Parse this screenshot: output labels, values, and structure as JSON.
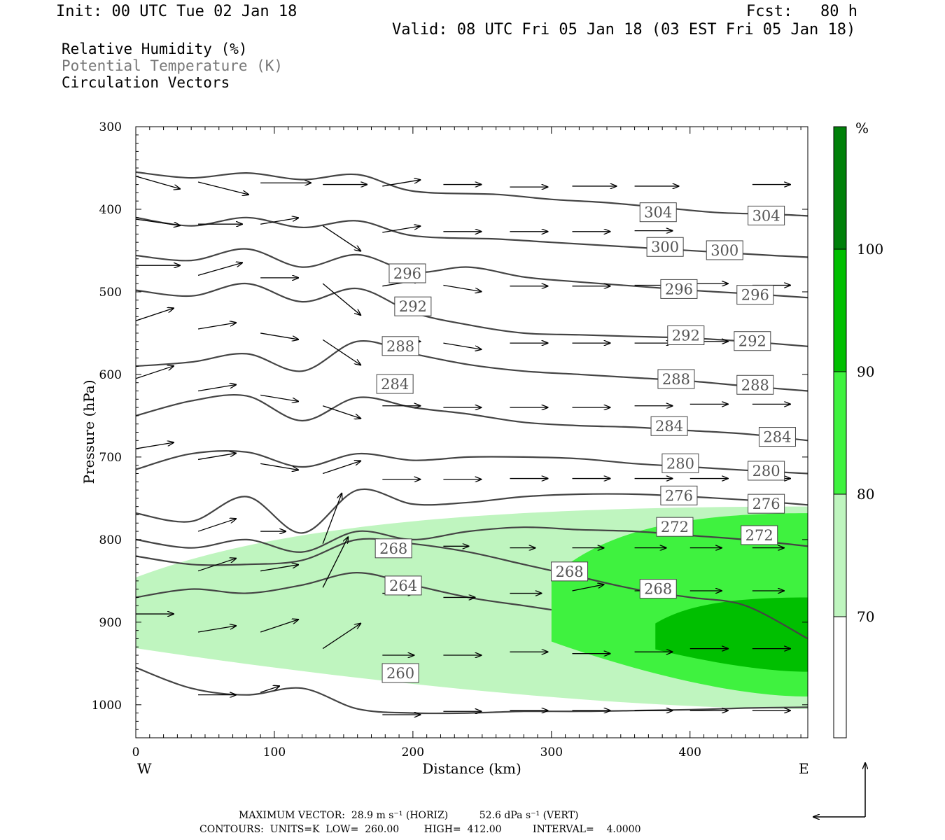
{
  "header": {
    "init": "Init: 00 UTC Tue 02 Jan 18",
    "fcst": "Fcst:   80 h",
    "valid": "Valid: 08 UTC Fri 05 Jan 18 (03 EST Fri 05 Jan 18)"
  },
  "legend": {
    "rh": "Relative Humidity (%)",
    "theta": "Potential Temperature (K)",
    "vectors": "Circulation Vectors"
  },
  "footer": {
    "max_vector": "MAXIMUM VECTOR:  28.9 m s⁻¹ (HORIZ)          52.6 dPa s⁻¹ (VERT)",
    "contours": "CONTOURS:  UNITS=K  LOW=  260.00        HIGH=  412.00          INTERVAL=    4.0000"
  },
  "colors": {
    "rh_70_80": "#bff5bf",
    "rh_80_90": "#3ff23f",
    "rh_90_100": "#00bf00",
    "rh_100": "#00800a",
    "theta_line": "#444444"
  },
  "chart_data": {
    "type": "cross-section",
    "xlabel": "Distance (km)",
    "ylabel": "Pressure (hPa)",
    "xlim": [
      0,
      485
    ],
    "ylim": [
      1040,
      300
    ],
    "x_ticks": [
      "0",
      "100",
      "200",
      "300",
      "400"
    ],
    "y_ticks": [
      "300",
      "400",
      "500",
      "600",
      "700",
      "800",
      "900",
      "1000"
    ],
    "x_end_labels": {
      "west": "W",
      "east": "E"
    },
    "colorbar": {
      "unit": "%",
      "levels": [
        "70",
        "80",
        "90",
        "100"
      ]
    },
    "theta_contours": [
      {
        "level": 304,
        "labels": [
          {
            "label": "304",
            "x": 377,
            "p": 404
          },
          {
            "label": "304",
            "x": 455,
            "p": 408
          }
        ],
        "x": [
          0,
          40,
          80,
          120,
          160,
          200,
          260,
          300,
          340,
          380,
          420,
          460,
          485
        ],
        "p": [
          355,
          362,
          356,
          364,
          358,
          378,
          382,
          388,
          392,
          398,
          404,
          406,
          408
        ]
      },
      {
        "level": 300,
        "labels": [
          {
            "label": "300",
            "x": 382,
            "p": 446
          },
          {
            "label": "300",
            "x": 425,
            "p": 450
          }
        ],
        "x": [
          0,
          40,
          80,
          120,
          160,
          200,
          260,
          300,
          340,
          380,
          420,
          460,
          485
        ],
        "p": [
          410,
          420,
          410,
          422,
          414,
          432,
          436,
          440,
          444,
          448,
          452,
          456,
          458
        ]
      },
      {
        "level": 296,
        "labels": [
          {
            "label": "296",
            "x": 196,
            "p": 478
          },
          {
            "label": "296",
            "x": 392,
            "p": 497
          },
          {
            "label": "296",
            "x": 447,
            "p": 504
          }
        ],
        "x": [
          0,
          40,
          80,
          120,
          160,
          200,
          240,
          280,
          320,
          360,
          400,
          440,
          485
        ],
        "p": [
          456,
          462,
          448,
          470,
          455,
          476,
          470,
          482,
          488,
          493,
          498,
          502,
          507
        ]
      },
      {
        "level": 292,
        "labels": [
          {
            "label": "292",
            "x": 200,
            "p": 518
          },
          {
            "label": "292",
            "x": 397,
            "p": 553
          },
          {
            "label": "292",
            "x": 445,
            "p": 560
          }
        ],
        "x": [
          0,
          40,
          80,
          120,
          160,
          200,
          240,
          280,
          320,
          360,
          400,
          440,
          485
        ],
        "p": [
          498,
          505,
          490,
          512,
          496,
          525,
          540,
          550,
          552,
          554,
          556,
          560,
          566
        ]
      },
      {
        "level": 288,
        "labels": [
          {
            "label": "288",
            "x": 191,
            "p": 566
          },
          {
            "label": "288",
            "x": 390,
            "p": 606
          },
          {
            "label": "288",
            "x": 447,
            "p": 613
          }
        ],
        "x": [
          0,
          40,
          80,
          120,
          160,
          200,
          240,
          280,
          320,
          360,
          400,
          440,
          485
        ],
        "p": [
          590,
          585,
          575,
          596,
          560,
          575,
          588,
          596,
          600,
          604,
          608,
          614,
          620
        ]
      },
      {
        "level": 284,
        "labels": [
          {
            "label": "284",
            "x": 187,
            "p": 612
          },
          {
            "label": "284",
            "x": 385,
            "p": 663
          },
          {
            "label": "284",
            "x": 463,
            "p": 676
          }
        ],
        "x": [
          0,
          40,
          80,
          120,
          160,
          200,
          240,
          280,
          320,
          360,
          400,
          440,
          485
        ],
        "p": [
          650,
          632,
          626,
          656,
          628,
          640,
          648,
          658,
          662,
          664,
          668,
          672,
          680
        ]
      },
      {
        "level": 280,
        "labels": [
          {
            "label": "280",
            "x": 393,
            "p": 708
          },
          {
            "label": "280",
            "x": 455,
            "p": 717
          }
        ],
        "x": [
          0,
          40,
          80,
          120,
          160,
          200,
          240,
          280,
          320,
          360,
          400,
          440,
          485
        ],
        "p": [
          715,
          696,
          694,
          712,
          696,
          704,
          700,
          700,
          702,
          708,
          712,
          716,
          720
        ]
      },
      {
        "level": 276,
        "labels": [
          {
            "label": "276",
            "x": 392,
            "p": 747
          },
          {
            "label": "276",
            "x": 455,
            "p": 757
          }
        ],
        "x": [
          0,
          40,
          80,
          120,
          160,
          200,
          240,
          280,
          320,
          360,
          400,
          440,
          485
        ],
        "p": [
          768,
          778,
          748,
          792,
          740,
          757,
          755,
          748,
          745,
          745,
          748,
          752,
          758
        ]
      },
      {
        "level": 272,
        "labels": [
          {
            "label": "272",
            "x": 389,
            "p": 785
          },
          {
            "label": "272",
            "x": 450,
            "p": 795
          }
        ],
        "x": [
          0,
          40,
          80,
          120,
          160,
          200,
          240,
          280,
          320,
          360,
          400,
          440,
          485
        ],
        "p": [
          800,
          810,
          800,
          815,
          790,
          800,
          790,
          785,
          788,
          790,
          795,
          800,
          808
        ]
      },
      {
        "level": 268,
        "labels": [
          {
            "label": "268",
            "x": 186,
            "p": 811
          },
          {
            "label": "268",
            "x": 313,
            "p": 839
          },
          {
            "label": "268",
            "x": 377,
            "p": 860
          }
        ],
        "x": [
          0,
          40,
          80,
          120,
          160,
          200,
          240,
          280,
          320,
          360,
          400,
          440,
          485
        ],
        "p": [
          820,
          830,
          830,
          825,
          800,
          805,
          815,
          830,
          845,
          860,
          870,
          880,
          920
        ]
      },
      {
        "level": 264,
        "labels": [
          {
            "label": "264",
            "x": 193,
            "p": 856
          }
        ],
        "x": [
          0,
          40,
          80,
          120,
          160,
          200,
          240,
          280,
          300
        ],
        "p": [
          870,
          860,
          865,
          855,
          840,
          855,
          870,
          880,
          885
        ]
      },
      {
        "level": 260,
        "labels": [
          {
            "label": "260",
            "x": 191,
            "p": 962
          }
        ],
        "x": [
          0,
          40,
          80,
          120,
          160,
          200,
          240,
          280,
          320,
          360,
          400,
          440,
          485
        ],
        "p": [
          955,
          980,
          988,
          980,
          1005,
          1010,
          1010,
          1008,
          1008,
          1007,
          1006,
          1004,
          1003
        ]
      }
    ],
    "rh_regions": [
      {
        "level": "70-80",
        "p_top": 760,
        "p_bottom": 1005,
        "x_start": 0,
        "x_end": 485
      },
      {
        "level": "80-90",
        "p_top": 768,
        "p_bottom": 990,
        "x_start": 300,
        "x_end": 485
      },
      {
        "level": "90-100",
        "p_top": 870,
        "p_bottom": 960,
        "x_start": 375,
        "x_end": 485
      }
    ],
    "vectors": [
      {
        "x": 0,
        "p": 360,
        "u": 7,
        "w": -2
      },
      {
        "x": 45,
        "p": 367,
        "u": 8,
        "w": -2
      },
      {
        "x": 90,
        "p": 368,
        "u": 8,
        "w": 0
      },
      {
        "x": 135,
        "p": 370,
        "u": 7,
        "w": 0
      },
      {
        "x": 178,
        "p": 372,
        "u": 6,
        "w": 1
      },
      {
        "x": 222,
        "p": 370,
        "u": 6,
        "w": 0
      },
      {
        "x": 270,
        "p": 373,
        "u": 6,
        "w": 0
      },
      {
        "x": 315,
        "p": 372,
        "u": 7,
        "w": 0
      },
      {
        "x": 360,
        "p": 372,
        "u": 7,
        "w": 0
      },
      {
        "x": 445,
        "p": 370,
        "u": 6,
        "w": 0
      },
      {
        "x": 0,
        "p": 412,
        "u": 7,
        "w": -1
      },
      {
        "x": 45,
        "p": 418,
        "u": 7,
        "w": 0
      },
      {
        "x": 90,
        "p": 418,
        "u": 6,
        "w": 1
      },
      {
        "x": 135,
        "p": 420,
        "u": 6,
        "w": -4
      },
      {
        "x": 178,
        "p": 428,
        "u": 6,
        "w": 1
      },
      {
        "x": 222,
        "p": 427,
        "u": 6,
        "w": 0
      },
      {
        "x": 270,
        "p": 427,
        "u": 6,
        "w": 0
      },
      {
        "x": 315,
        "p": 427,
        "u": 6,
        "w": 0
      },
      {
        "x": 360,
        "p": 426,
        "u": 6,
        "w": 0
      },
      {
        "x": 0,
        "p": 468,
        "u": 7,
        "w": 0
      },
      {
        "x": 45,
        "p": 480,
        "u": 7,
        "w": 2
      },
      {
        "x": 90,
        "p": 483,
        "u": 6,
        "w": 0
      },
      {
        "x": 135,
        "p": 490,
        "u": 6,
        "w": -5
      },
      {
        "x": 178,
        "p": 493,
        "u": 6,
        "w": 1
      },
      {
        "x": 222,
        "p": 492,
        "u": 6,
        "w": -1
      },
      {
        "x": 270,
        "p": 493,
        "u": 6,
        "w": 0
      },
      {
        "x": 315,
        "p": 493,
        "u": 6,
        "w": 0
      },
      {
        "x": 360,
        "p": 492,
        "u": 6,
        "w": 0
      },
      {
        "x": 400,
        "p": 490,
        "u": 6,
        "w": 0
      },
      {
        "x": 445,
        "p": 492,
        "u": 6,
        "w": 0
      },
      {
        "x": 0,
        "p": 535,
        "u": 6,
        "w": 2
      },
      {
        "x": 45,
        "p": 545,
        "u": 6,
        "w": 1
      },
      {
        "x": 90,
        "p": 550,
        "u": 6,
        "w": -1
      },
      {
        "x": 135,
        "p": 558,
        "u": 6,
        "w": -4
      },
      {
        "x": 178,
        "p": 560,
        "u": 6,
        "w": 0
      },
      {
        "x": 222,
        "p": 562,
        "u": 6,
        "w": -1
      },
      {
        "x": 270,
        "p": 562,
        "u": 6,
        "w": 0
      },
      {
        "x": 315,
        "p": 562,
        "u": 6,
        "w": 0
      },
      {
        "x": 360,
        "p": 562,
        "u": 6,
        "w": 0
      },
      {
        "x": 400,
        "p": 560,
        "u": 6,
        "w": 0
      },
      {
        "x": 0,
        "p": 605,
        "u": 6,
        "w": 2
      },
      {
        "x": 45,
        "p": 620,
        "u": 6,
        "w": 1
      },
      {
        "x": 90,
        "p": 625,
        "u": 6,
        "w": -1
      },
      {
        "x": 135,
        "p": 638,
        "u": 6,
        "w": -2
      },
      {
        "x": 178,
        "p": 638,
        "u": 6,
        "w": 0
      },
      {
        "x": 222,
        "p": 640,
        "u": 6,
        "w": 0
      },
      {
        "x": 270,
        "p": 640,
        "u": 6,
        "w": 0
      },
      {
        "x": 315,
        "p": 640,
        "u": 6,
        "w": 0
      },
      {
        "x": 360,
        "p": 638,
        "u": 6,
        "w": 0
      },
      {
        "x": 400,
        "p": 636,
        "u": 6,
        "w": 0
      },
      {
        "x": 445,
        "p": 636,
        "u": 6,
        "w": 0
      },
      {
        "x": 0,
        "p": 690,
        "u": 6,
        "w": 1
      },
      {
        "x": 45,
        "p": 703,
        "u": 6,
        "w": 1
      },
      {
        "x": 90,
        "p": 708,
        "u": 6,
        "w": -1
      },
      {
        "x": 135,
        "p": 720,
        "u": 6,
        "w": 2
      },
      {
        "x": 178,
        "p": 727,
        "u": 6,
        "w": 0
      },
      {
        "x": 222,
        "p": 727,
        "u": 6,
        "w": 0
      },
      {
        "x": 270,
        "p": 726,
        "u": 6,
        "w": 0
      },
      {
        "x": 315,
        "p": 726,
        "u": 6,
        "w": 0
      },
      {
        "x": 360,
        "p": 726,
        "u": 6,
        "w": 0
      },
      {
        "x": 400,
        "p": 726,
        "u": 6,
        "w": 0
      },
      {
        "x": 445,
        "p": 726,
        "u": 6,
        "w": 0
      },
      {
        "x": 45,
        "p": 790,
        "u": 6,
        "w": 2
      },
      {
        "x": 90,
        "p": 790,
        "u": 4,
        "w": 0
      },
      {
        "x": 135,
        "p": 805,
        "u": 3,
        "w": 8
      },
      {
        "x": 222,
        "p": 808,
        "u": 4,
        "w": 0
      },
      {
        "x": 270,
        "p": 810,
        "u": 4,
        "w": 0
      },
      {
        "x": 315,
        "p": 810,
        "u": 5,
        "w": 0
      },
      {
        "x": 360,
        "p": 810,
        "u": 5,
        "w": 0
      },
      {
        "x": 400,
        "p": 810,
        "u": 5,
        "w": 0
      },
      {
        "x": 445,
        "p": 810,
        "u": 5,
        "w": 0
      },
      {
        "x": 45,
        "p": 838,
        "u": 6,
        "w": 2
      },
      {
        "x": 90,
        "p": 838,
        "u": 6,
        "w": 1
      },
      {
        "x": 135,
        "p": 858,
        "u": 4,
        "w": 8
      },
      {
        "x": 178,
        "p": 865,
        "u": 5,
        "w": 0
      },
      {
        "x": 222,
        "p": 870,
        "u": 5,
        "w": 0
      },
      {
        "x": 270,
        "p": 865,
        "u": 5,
        "w": 0
      },
      {
        "x": 315,
        "p": 862,
        "u": 5,
        "w": 1
      },
      {
        "x": 360,
        "p": 862,
        "u": 5,
        "w": 0
      },
      {
        "x": 400,
        "p": 862,
        "u": 5,
        "w": 0
      },
      {
        "x": 445,
        "p": 862,
        "u": 5,
        "w": 0
      },
      {
        "x": 0,
        "p": 890,
        "u": 6,
        "w": 0
      },
      {
        "x": 45,
        "p": 912,
        "u": 6,
        "w": 1
      },
      {
        "x": 90,
        "p": 912,
        "u": 6,
        "w": 2
      },
      {
        "x": 135,
        "p": 932,
        "u": 6,
        "w": 4
      },
      {
        "x": 178,
        "p": 940,
        "u": 5,
        "w": 0
      },
      {
        "x": 222,
        "p": 940,
        "u": 6,
        "w": 0
      },
      {
        "x": 270,
        "p": 936,
        "u": 6,
        "w": 0
      },
      {
        "x": 315,
        "p": 938,
        "u": 6,
        "w": 0
      },
      {
        "x": 360,
        "p": 936,
        "u": 6,
        "w": 0
      },
      {
        "x": 400,
        "p": 932,
        "u": 6,
        "w": 0
      },
      {
        "x": 445,
        "p": 932,
        "u": 6,
        "w": 0
      },
      {
        "x": 45,
        "p": 988,
        "u": 6,
        "w": 0
      },
      {
        "x": 90,
        "p": 985,
        "u": 3,
        "w": 1
      },
      {
        "x": 178,
        "p": 1012,
        "u": 6,
        "w": 0
      },
      {
        "x": 222,
        "p": 1008,
        "u": 6,
        "w": 0
      },
      {
        "x": 270,
        "p": 1007,
        "u": 6,
        "w": 0
      },
      {
        "x": 315,
        "p": 1007,
        "u": 6,
        "w": 0
      },
      {
        "x": 360,
        "p": 1007,
        "u": 6,
        "w": 0
      },
      {
        "x": 400,
        "p": 1007,
        "u": 6,
        "w": 0
      },
      {
        "x": 445,
        "p": 1007,
        "u": 6,
        "w": 0
      }
    ]
  }
}
